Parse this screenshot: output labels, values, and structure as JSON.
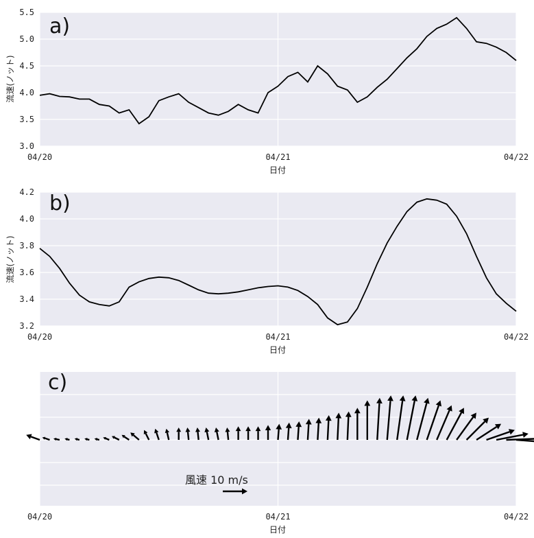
{
  "chart_data": [
    {
      "type": "line",
      "panel_label": "a)",
      "ylabel": "流速(ノット)",
      "xlabel": "日付",
      "x_ticks": [
        "04/20",
        "04/21",
        "04/22"
      ],
      "y_ticks": [
        "3.0",
        "3.5",
        "4.0",
        "4.5",
        "5.0",
        "5.5"
      ],
      "ylim": [
        3.0,
        5.5
      ],
      "xlim": [
        "04/20 00:00",
        "04/22 00:00"
      ],
      "grid": true,
      "x_hours": [
        0,
        1,
        2,
        3,
        4,
        5,
        6,
        7,
        8,
        9,
        10,
        11,
        12,
        13,
        14,
        15,
        16,
        17,
        18,
        19,
        20,
        21,
        22,
        23,
        24,
        25,
        26,
        27,
        28,
        29,
        30,
        31,
        32,
        33,
        34,
        35,
        36,
        37,
        38,
        39,
        40,
        41,
        42,
        43,
        44,
        45,
        46,
        47,
        48
      ],
      "values": [
        3.95,
        3.98,
        3.93,
        3.92,
        3.88,
        3.88,
        3.78,
        3.75,
        3.62,
        3.68,
        3.42,
        3.55,
        3.85,
        3.92,
        3.98,
        3.82,
        3.72,
        3.62,
        3.58,
        3.65,
        3.78,
        3.68,
        3.62,
        4.0,
        4.12,
        4.3,
        4.38,
        4.2,
        4.5,
        4.35,
        4.12,
        4.05,
        3.82,
        3.92,
        4.1,
        4.25,
        4.45,
        4.65,
        4.82,
        5.05,
        5.2,
        5.28,
        5.4,
        5.2,
        4.95,
        4.92,
        4.85,
        4.75,
        4.6
      ]
    },
    {
      "type": "line",
      "panel_label": "b)",
      "ylabel": "流速(ノット)",
      "xlabel": "日付",
      "x_ticks": [
        "04/20",
        "04/21",
        "04/22"
      ],
      "y_ticks": [
        "3.2",
        "3.4",
        "3.6",
        "3.8",
        "4.0",
        "4.2"
      ],
      "ylim": [
        3.2,
        4.2
      ],
      "xlim": [
        "04/20 00:00",
        "04/22 00:00"
      ],
      "grid": true,
      "x_hours": [
        0,
        1,
        2,
        3,
        4,
        5,
        6,
        7,
        8,
        9,
        10,
        11,
        12,
        13,
        14,
        15,
        16,
        17,
        18,
        19,
        20,
        21,
        22,
        23,
        24,
        25,
        26,
        27,
        28,
        29,
        30,
        31,
        32,
        33,
        34,
        35,
        36,
        37,
        38,
        39,
        40,
        41,
        42,
        43,
        44,
        45,
        46,
        47,
        48
      ],
      "values": [
        3.78,
        3.72,
        3.63,
        3.52,
        3.43,
        3.38,
        3.36,
        3.35,
        3.38,
        3.49,
        3.53,
        3.555,
        3.565,
        3.56,
        3.54,
        3.505,
        3.47,
        3.445,
        3.44,
        3.445,
        3.455,
        3.47,
        3.485,
        3.495,
        3.5,
        3.49,
        3.465,
        3.42,
        3.36,
        3.26,
        3.21,
        3.23,
        3.33,
        3.49,
        3.665,
        3.82,
        3.945,
        4.055,
        4.125,
        4.15,
        4.14,
        4.11,
        4.02,
        3.89,
        3.72,
        3.56,
        3.44,
        3.37,
        3.31
      ]
    },
    {
      "type": "quiver",
      "panel_label": "c)",
      "xlabel": "日付",
      "x_ticks": [
        "04/20",
        "04/21",
        "04/22"
      ],
      "key_label": "風速 10 m/s",
      "key_length_ms": 10,
      "grid": true,
      "x_hours": [
        0,
        1,
        2,
        3,
        4,
        5,
        6,
        7,
        8,
        9,
        10,
        11,
        12,
        13,
        14,
        15,
        16,
        17,
        18,
        19,
        20,
        21,
        22,
        23,
        24,
        25,
        26,
        27,
        28,
        29,
        30,
        31,
        32,
        33,
        34,
        35,
        36,
        37,
        38,
        39,
        40,
        41,
        42,
        43,
        44,
        45,
        46,
        47,
        48
      ],
      "u_ms": [
        -5.5,
        -3,
        -2.5,
        -2,
        -2,
        -2,
        -2,
        -2.5,
        -3,
        -3,
        -3.5,
        -2,
        -1.5,
        -1,
        0,
        -0.5,
        -0.5,
        -1,
        -1,
        -0.5,
        0,
        0,
        0,
        0,
        0.5,
        0.5,
        0.5,
        0.5,
        0.5,
        0.5,
        0.5,
        0.5,
        0,
        0,
        1,
        1.5,
        2.5,
        3.5,
        4.5,
        5.5,
        6,
        7,
        8,
        9,
        10,
        11.5,
        13,
        13.5,
        13
      ],
      "v_ms": [
        2,
        1,
        0.5,
        0.5,
        0.5,
        0.5,
        0.5,
        1,
        1.5,
        2,
        3,
        4,
        4.5,
        4.5,
        5,
        5,
        5,
        5,
        5,
        5,
        5.5,
        5.5,
        5.5,
        6,
        6.5,
        7,
        7.5,
        8.5,
        9,
        10,
        11,
        11.5,
        13,
        16,
        17,
        18,
        18,
        18,
        17,
        16,
        14,
        13,
        11,
        9,
        6.5,
        4,
        2.5,
        0.5,
        -1
      ]
    }
  ]
}
